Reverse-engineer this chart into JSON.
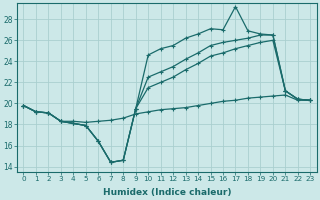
{
  "xlabel": "Humidex (Indice chaleur)",
  "bg_color": "#cce8e8",
  "grid_color": "#aacfcf",
  "line_color": "#1a6b6b",
  "xlim": [
    -0.5,
    23.5
  ],
  "ylim": [
    13.5,
    29.5
  ],
  "xticks": [
    0,
    1,
    2,
    3,
    4,
    5,
    6,
    7,
    8,
    9,
    10,
    11,
    12,
    13,
    14,
    15,
    16,
    17,
    18,
    19,
    20,
    21,
    22,
    23
  ],
  "yticks": [
    14,
    16,
    18,
    20,
    22,
    24,
    26,
    28
  ],
  "line_zigzag_x": [
    0,
    1,
    2,
    3,
    4,
    5,
    6,
    7,
    8,
    9,
    10,
    11,
    12,
    13,
    14,
    15,
    16,
    17,
    18,
    19,
    20,
    21,
    22,
    23
  ],
  "line_zigzag_y": [
    19.8,
    19.2,
    19.1,
    18.3,
    18.1,
    17.9,
    16.4,
    14.4,
    14.6,
    19.5,
    24.6,
    25.2,
    25.5,
    26.2,
    26.6,
    27.1,
    27.0,
    29.2,
    26.9,
    26.6,
    26.5,
    21.2,
    20.4,
    20.3
  ],
  "line_upper_x": [
    0,
    1,
    2,
    3,
    4,
    5,
    6,
    7,
    8,
    9,
    10,
    11,
    12,
    13,
    14,
    15,
    16,
    17,
    18,
    19,
    20,
    21,
    22,
    23
  ],
  "line_upper_y": [
    19.8,
    19.2,
    19.1,
    18.3,
    18.1,
    17.9,
    16.4,
    14.4,
    14.6,
    19.5,
    22.5,
    23.0,
    23.5,
    24.2,
    24.8,
    25.5,
    25.8,
    26.0,
    26.2,
    26.5,
    26.5,
    21.2,
    20.4,
    20.3
  ],
  "line_mid_x": [
    0,
    1,
    2,
    3,
    4,
    5,
    6,
    7,
    8,
    9,
    10,
    11,
    12,
    13,
    14,
    15,
    16,
    17,
    18,
    19,
    20,
    21,
    22,
    23
  ],
  "line_mid_y": [
    19.8,
    19.2,
    19.1,
    18.3,
    18.1,
    17.9,
    16.4,
    14.4,
    14.6,
    19.5,
    21.5,
    22.0,
    22.5,
    23.2,
    23.8,
    24.5,
    24.8,
    25.2,
    25.5,
    25.8,
    26.0,
    21.2,
    20.4,
    20.3
  ],
  "line_flat_x": [
    0,
    1,
    2,
    3,
    4,
    5,
    6,
    7,
    8,
    9,
    10,
    11,
    12,
    13,
    14,
    15,
    16,
    17,
    18,
    19,
    20,
    21,
    22,
    23
  ],
  "line_flat_y": [
    19.8,
    19.2,
    19.1,
    18.3,
    18.3,
    18.2,
    18.3,
    18.4,
    18.6,
    19.0,
    19.2,
    19.4,
    19.5,
    19.6,
    19.8,
    20.0,
    20.2,
    20.3,
    20.5,
    20.6,
    20.7,
    20.8,
    20.3,
    20.3
  ]
}
